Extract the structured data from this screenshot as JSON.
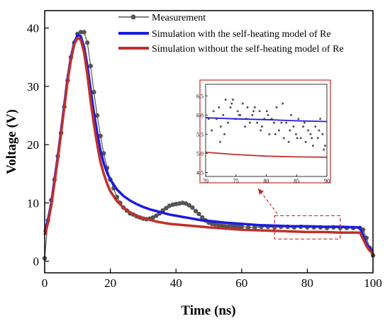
{
  "chart_data": {
    "type": "line",
    "xlabel": "Time (ns)",
    "ylabel": "Voltage (V)",
    "xlim": [
      0,
      100
    ],
    "ylim": [
      -2,
      43
    ],
    "xticks": [
      "0",
      "20",
      "40",
      "60",
      "80",
      "100"
    ],
    "yticks": [
      "0",
      "10",
      "20",
      "30",
      "40"
    ],
    "legend_position": "top-right",
    "grid": false,
    "colors": {
      "measurement": "#555555",
      "with_model": "#1a1ae6",
      "without_model": "#c0302a",
      "highlight": "#c0302a"
    },
    "series": [
      {
        "name": "Measurement",
        "style": "line-with-markers",
        "x": [
          0,
          1,
          2,
          3,
          4,
          5,
          6,
          7,
          8,
          9,
          10,
          11,
          12,
          13,
          14,
          15,
          16,
          17,
          18,
          19,
          20,
          21,
          22,
          23,
          24,
          25,
          26,
          27,
          28,
          29,
          30,
          31,
          32,
          33,
          34,
          35,
          36,
          37,
          38,
          39,
          40,
          41,
          42,
          43,
          44,
          45,
          46,
          47,
          48,
          49,
          50,
          51,
          52,
          53,
          54,
          55,
          56,
          57,
          58,
          59,
          60,
          62,
          64,
          66,
          68,
          70,
          72,
          74,
          76,
          78,
          80,
          82,
          84,
          86,
          88,
          90,
          92,
          94,
          96,
          97,
          98,
          99,
          100
        ],
        "y": [
          0.5,
          7,
          10.5,
          14,
          18,
          22,
          26.5,
          31,
          35,
          37.5,
          39,
          39.3,
          39.3,
          37.5,
          33.5,
          29,
          25,
          21.5,
          18.5,
          16,
          14,
          12.5,
          11,
          10,
          9.2,
          8.7,
          8.2,
          8.0,
          7.7,
          7.5,
          7.3,
          7.2,
          7.3,
          7.5,
          7.8,
          8.2,
          8.7,
          9.1,
          9.5,
          9.7,
          9.8,
          9.9,
          10.0,
          9.9,
          9.6,
          9.2,
          8.6,
          8.1,
          7.5,
          7.0,
          6.6,
          6.4,
          6.3,
          6.2,
          6.1,
          6.0,
          6.0,
          6.0,
          6.0,
          5.9,
          5.9,
          5.8,
          5.8,
          5.9,
          5.9,
          5.8,
          5.9,
          5.9,
          5.8,
          5.9,
          5.8,
          5.8,
          5.8,
          5.7,
          5.8,
          5.7,
          5.7,
          5.7,
          5.7,
          5.4,
          4.0,
          2.3,
          1.0
        ]
      },
      {
        "name": "Simulation with the self-heating model of Re",
        "style": "line",
        "x": [
          0,
          1,
          2,
          3,
          4,
          5,
          6,
          7,
          8,
          9,
          10,
          11,
          12,
          13,
          14,
          15,
          16,
          17,
          18,
          19,
          20,
          22,
          24,
          26,
          28,
          30,
          32,
          34,
          36,
          38,
          40,
          42,
          44,
          46,
          48,
          50,
          55,
          60,
          65,
          70,
          75,
          80,
          85,
          90,
          95,
          96,
          97,
          98,
          99,
          100
        ],
        "y": [
          5,
          7,
          10,
          14,
          18,
          22.5,
          27,
          31.5,
          35,
          37.5,
          38.8,
          38.6,
          36.8,
          33.5,
          29.5,
          25.5,
          22,
          19,
          16.8,
          15.2,
          14,
          12.3,
          11.2,
          10.4,
          9.8,
          9.3,
          8.9,
          8.6,
          8.3,
          8.0,
          7.8,
          7.6,
          7.4,
          7.2,
          7.0,
          6.9,
          6.6,
          6.4,
          6.2,
          6.1,
          6.0,
          6.0,
          5.9,
          5.9,
          5.8,
          5.8,
          4.5,
          3.0,
          2.2,
          1.8
        ]
      },
      {
        "name": "Simulation without the self-heating model of Re",
        "style": "line",
        "x": [
          0,
          1,
          2,
          3,
          4,
          5,
          6,
          7,
          8,
          9,
          10,
          11,
          12,
          13,
          14,
          15,
          16,
          17,
          18,
          19,
          20,
          22,
          24,
          26,
          28,
          30,
          32,
          34,
          36,
          38,
          40,
          42,
          44,
          46,
          48,
          50,
          55,
          60,
          65,
          70,
          75,
          80,
          85,
          90,
          95,
          96,
          97,
          98,
          99,
          100
        ],
        "y": [
          4.5,
          6.5,
          9.5,
          13.5,
          17.5,
          22,
          26.5,
          31,
          34.5,
          37.2,
          38.3,
          38.0,
          35.8,
          32,
          27.5,
          23.5,
          20,
          17,
          15,
          13.3,
          12,
          10.3,
          9.2,
          8.4,
          7.8,
          7.4,
          7.1,
          6.8,
          6.6,
          6.4,
          6.3,
          6.2,
          6.1,
          6.0,
          5.9,
          5.8,
          5.6,
          5.4,
          5.3,
          5.2,
          5.1,
          5.0,
          5.0,
          4.9,
          4.9,
          4.9,
          3.8,
          2.6,
          1.8,
          1.3
        ]
      }
    ],
    "highlight_box": {
      "x": [
        70,
        90
      ],
      "y": [
        3.8,
        7.8
      ]
    },
    "inset": {
      "xlim": [
        70,
        90
      ],
      "ylim": [
        4.4,
        6.8
      ],
      "xticks": [
        "70",
        "75",
        "80",
        "85",
        "90"
      ],
      "yticks": [
        "4.5",
        "5.0",
        "5.5",
        "6.0",
        "6.5"
      ],
      "series": [
        {
          "name": "Measurement",
          "style": "markers",
          "x": [
            70.5,
            71,
            71.3,
            71.8,
            72.2,
            72.5,
            72.9,
            73.3,
            73.7,
            74.1,
            74.5,
            74.9,
            75.3,
            75.7,
            76.1,
            76.5,
            76.9,
            77.3,
            77.7,
            78.1,
            78.5,
            78.9,
            79.3,
            79.7,
            80.1,
            80.5,
            80.9,
            81.3,
            81.7,
            82.1,
            82.5,
            82.9,
            83.3,
            83.7,
            84.1,
            84.5,
            84.9,
            85.3,
            85.7,
            86.1,
            86.5,
            86.9,
            87.3,
            87.7,
            88.1,
            88.5,
            88.9,
            89.3,
            89.7,
            72.4,
            73.1,
            74.3,
            75.5,
            76.7,
            77.9,
            79.1,
            80.3,
            81.5,
            82.7,
            83.9,
            85.1,
            86.3,
            87.5,
            88.7,
            89.5
          ],
          "y": [
            5.9,
            5.6,
            6.1,
            5.9,
            6.2,
            5.7,
            6.0,
            6.4,
            5.8,
            6.2,
            6.4,
            5.9,
            6.1,
            6.0,
            6.3,
            5.7,
            6.2,
            5.8,
            6.0,
            6.2,
            5.8,
            6.1,
            5.7,
            5.9,
            6.1,
            5.5,
            5.9,
            5.8,
            6.2,
            5.6,
            5.8,
            5.4,
            5.8,
            5.3,
            6.0,
            5.7,
            5.5,
            5.9,
            5.4,
            5.7,
            5.3,
            5.6,
            5.5,
            5.2,
            5.7,
            5.4,
            5.9,
            5.5,
            5.2,
            5.3,
            5.5,
            6.3,
            6.0,
            5.9,
            6.1,
            5.6,
            6.0,
            5.5,
            6.3,
            5.6,
            5.4,
            5.8,
            5.4,
            5.6,
            5.1
          ]
        },
        {
          "name": "Simulation with the self-heating model of Re",
          "style": "line",
          "x": [
            70,
            75,
            80,
            85,
            90
          ],
          "y": [
            5.93,
            5.9,
            5.88,
            5.85,
            5.83
          ]
        },
        {
          "name": "Simulation without the self-heating model of Re",
          "style": "line",
          "x": [
            70,
            75,
            80,
            85,
            90
          ],
          "y": [
            5.03,
            4.97,
            4.93,
            4.91,
            4.9
          ]
        }
      ]
    }
  }
}
